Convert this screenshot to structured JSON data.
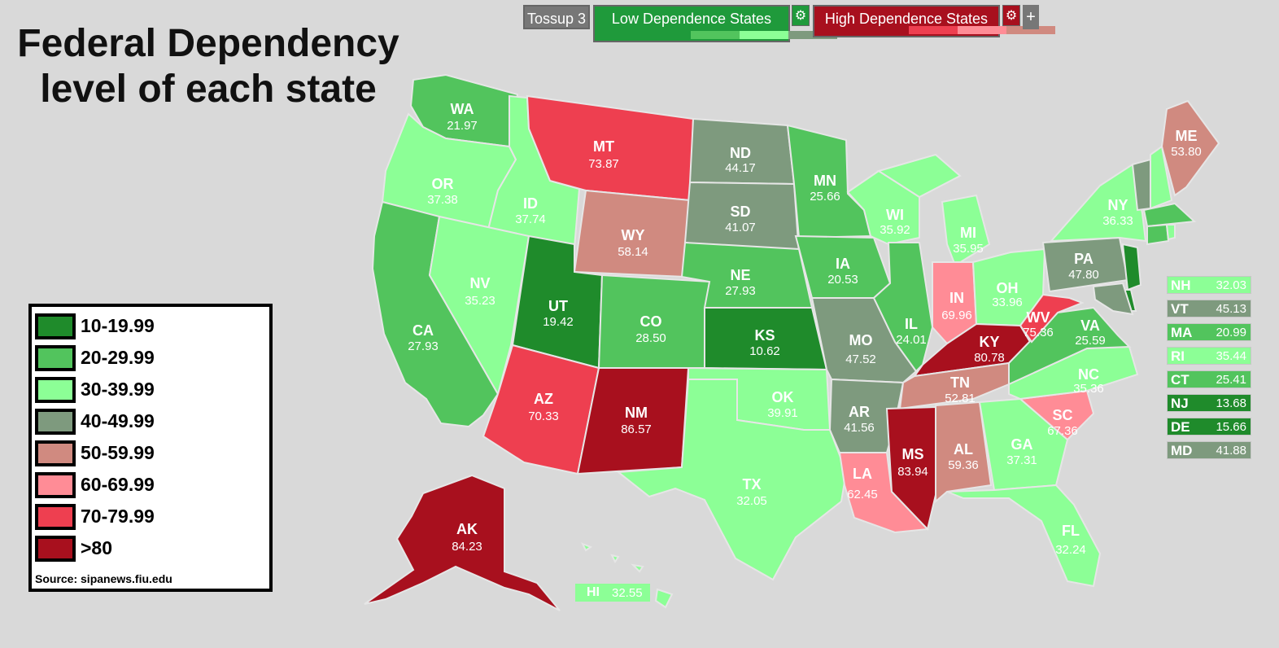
{
  "title_lines": [
    "Federal Dependency",
    "level of each state"
  ],
  "toolbar": {
    "tossup": "Tossup 3",
    "low_label": "Low Dependence States",
    "high_label": "High Dependence States",
    "plus": "+",
    "low_colors": [
      "#1f9a3b",
      "#52c45d",
      "#8cff96",
      "#7e9a7e"
    ],
    "high_colors": [
      "#a8101e",
      "#ee3f50",
      "#ff8c96",
      "#d08a80"
    ]
  },
  "legend": {
    "items": [
      {
        "label": "10-19.99",
        "color": "#1f8b2b"
      },
      {
        "label": "20-29.99",
        "color": "#52c45d"
      },
      {
        "label": "30-39.99",
        "color": "#8cff96"
      },
      {
        "label": "40-49.99",
        "color": "#7e9a7e"
      },
      {
        "label": "50-59.99",
        "color": "#d08a80"
      },
      {
        "label": "60-69.99",
        "color": "#ff8c96"
      },
      {
        "label": "70-79.99",
        "color": "#ee3f50"
      },
      {
        "label": ">80",
        "color": "#a8101e"
      }
    ],
    "source": "Source: sipanews.fiu.edu"
  },
  "states": {
    "WA": {
      "value": "21.97",
      "color": "#52c45d"
    },
    "OR": {
      "value": "37.38",
      "color": "#8cff96"
    },
    "CA": {
      "value": "27.93",
      "color": "#52c45d"
    },
    "ID": {
      "value": "37.74",
      "color": "#8cff96"
    },
    "NV": {
      "value": "35.23",
      "color": "#8cff96"
    },
    "MT": {
      "value": "73.87",
      "color": "#ee3f50"
    },
    "WY": {
      "value": "58.14",
      "color": "#d08a80"
    },
    "UT": {
      "value": "19.42",
      "color": "#1f8b2b"
    },
    "AZ": {
      "value": "70.33",
      "color": "#ee3f50"
    },
    "CO": {
      "value": "28.50",
      "color": "#52c45d"
    },
    "NM": {
      "value": "86.57",
      "color": "#a8101e"
    },
    "ND": {
      "value": "44.17",
      "color": "#7e9a7e"
    },
    "SD": {
      "value": "41.07",
      "color": "#7e9a7e"
    },
    "NE": {
      "value": "27.93",
      "color": "#52c45d"
    },
    "KS": {
      "value": "10.62",
      "color": "#1f8b2b"
    },
    "OK": {
      "value": "39.91",
      "color": "#8cff96"
    },
    "TX": {
      "value": "32.05",
      "color": "#8cff96"
    },
    "MN": {
      "value": "25.66",
      "color": "#52c45d"
    },
    "IA": {
      "value": "20.53",
      "color": "#52c45d"
    },
    "MO": {
      "value": "47.52",
      "color": "#7e9a7e"
    },
    "AR": {
      "value": "41.56",
      "color": "#7e9a7e"
    },
    "LA": {
      "value": "62.45",
      "color": "#ff8c96"
    },
    "WI": {
      "value": "35.92",
      "color": "#8cff96"
    },
    "IL": {
      "value": "24.01",
      "color": "#52c45d"
    },
    "MI": {
      "value": "35.95",
      "color": "#8cff96"
    },
    "IN": {
      "value": "69.96",
      "color": "#ff8c96"
    },
    "OH": {
      "value": "33.96",
      "color": "#8cff96"
    },
    "KY": {
      "value": "80.78",
      "color": "#a8101e"
    },
    "TN": {
      "value": "52.81",
      "color": "#d08a80"
    },
    "MS": {
      "value": "83.94",
      "color": "#a8101e"
    },
    "AL": {
      "value": "59.36",
      "color": "#d08a80"
    },
    "GA": {
      "value": "37.31",
      "color": "#8cff96"
    },
    "FL": {
      "value": "32.24",
      "color": "#8cff96"
    },
    "SC": {
      "value": "67.36",
      "color": "#ff8c96"
    },
    "NC": {
      "value": "35.36",
      "color": "#8cff96"
    },
    "VA": {
      "value": "25.59",
      "color": "#52c45d"
    },
    "WV": {
      "value": "75.36",
      "color": "#ee3f50"
    },
    "PA": {
      "value": "47.80",
      "color": "#7e9a7e"
    },
    "NY": {
      "value": "36.33",
      "color": "#8cff96"
    },
    "ME": {
      "value": "53.80",
      "color": "#d08a80"
    },
    "AK": {
      "value": "84.23",
      "color": "#a8101e"
    },
    "HI": {
      "value": "32.55",
      "color": "#8cff96"
    }
  },
  "small_states": [
    {
      "abbr": "NH",
      "value": "32.03",
      "color": "#8cff96"
    },
    {
      "abbr": "VT",
      "value": "45.13",
      "color": "#7e9a7e"
    },
    {
      "abbr": "MA",
      "value": "20.99",
      "color": "#52c45d"
    },
    {
      "abbr": "RI",
      "value": "35.44",
      "color": "#8cff96"
    },
    {
      "abbr": "CT",
      "value": "25.41",
      "color": "#52c45d"
    },
    {
      "abbr": "NJ",
      "value": "13.68",
      "color": "#1f8b2b"
    },
    {
      "abbr": "DE",
      "value": "15.66",
      "color": "#1f8b2b"
    },
    {
      "abbr": "MD",
      "value": "41.88",
      "color": "#7e9a7e"
    }
  ]
}
